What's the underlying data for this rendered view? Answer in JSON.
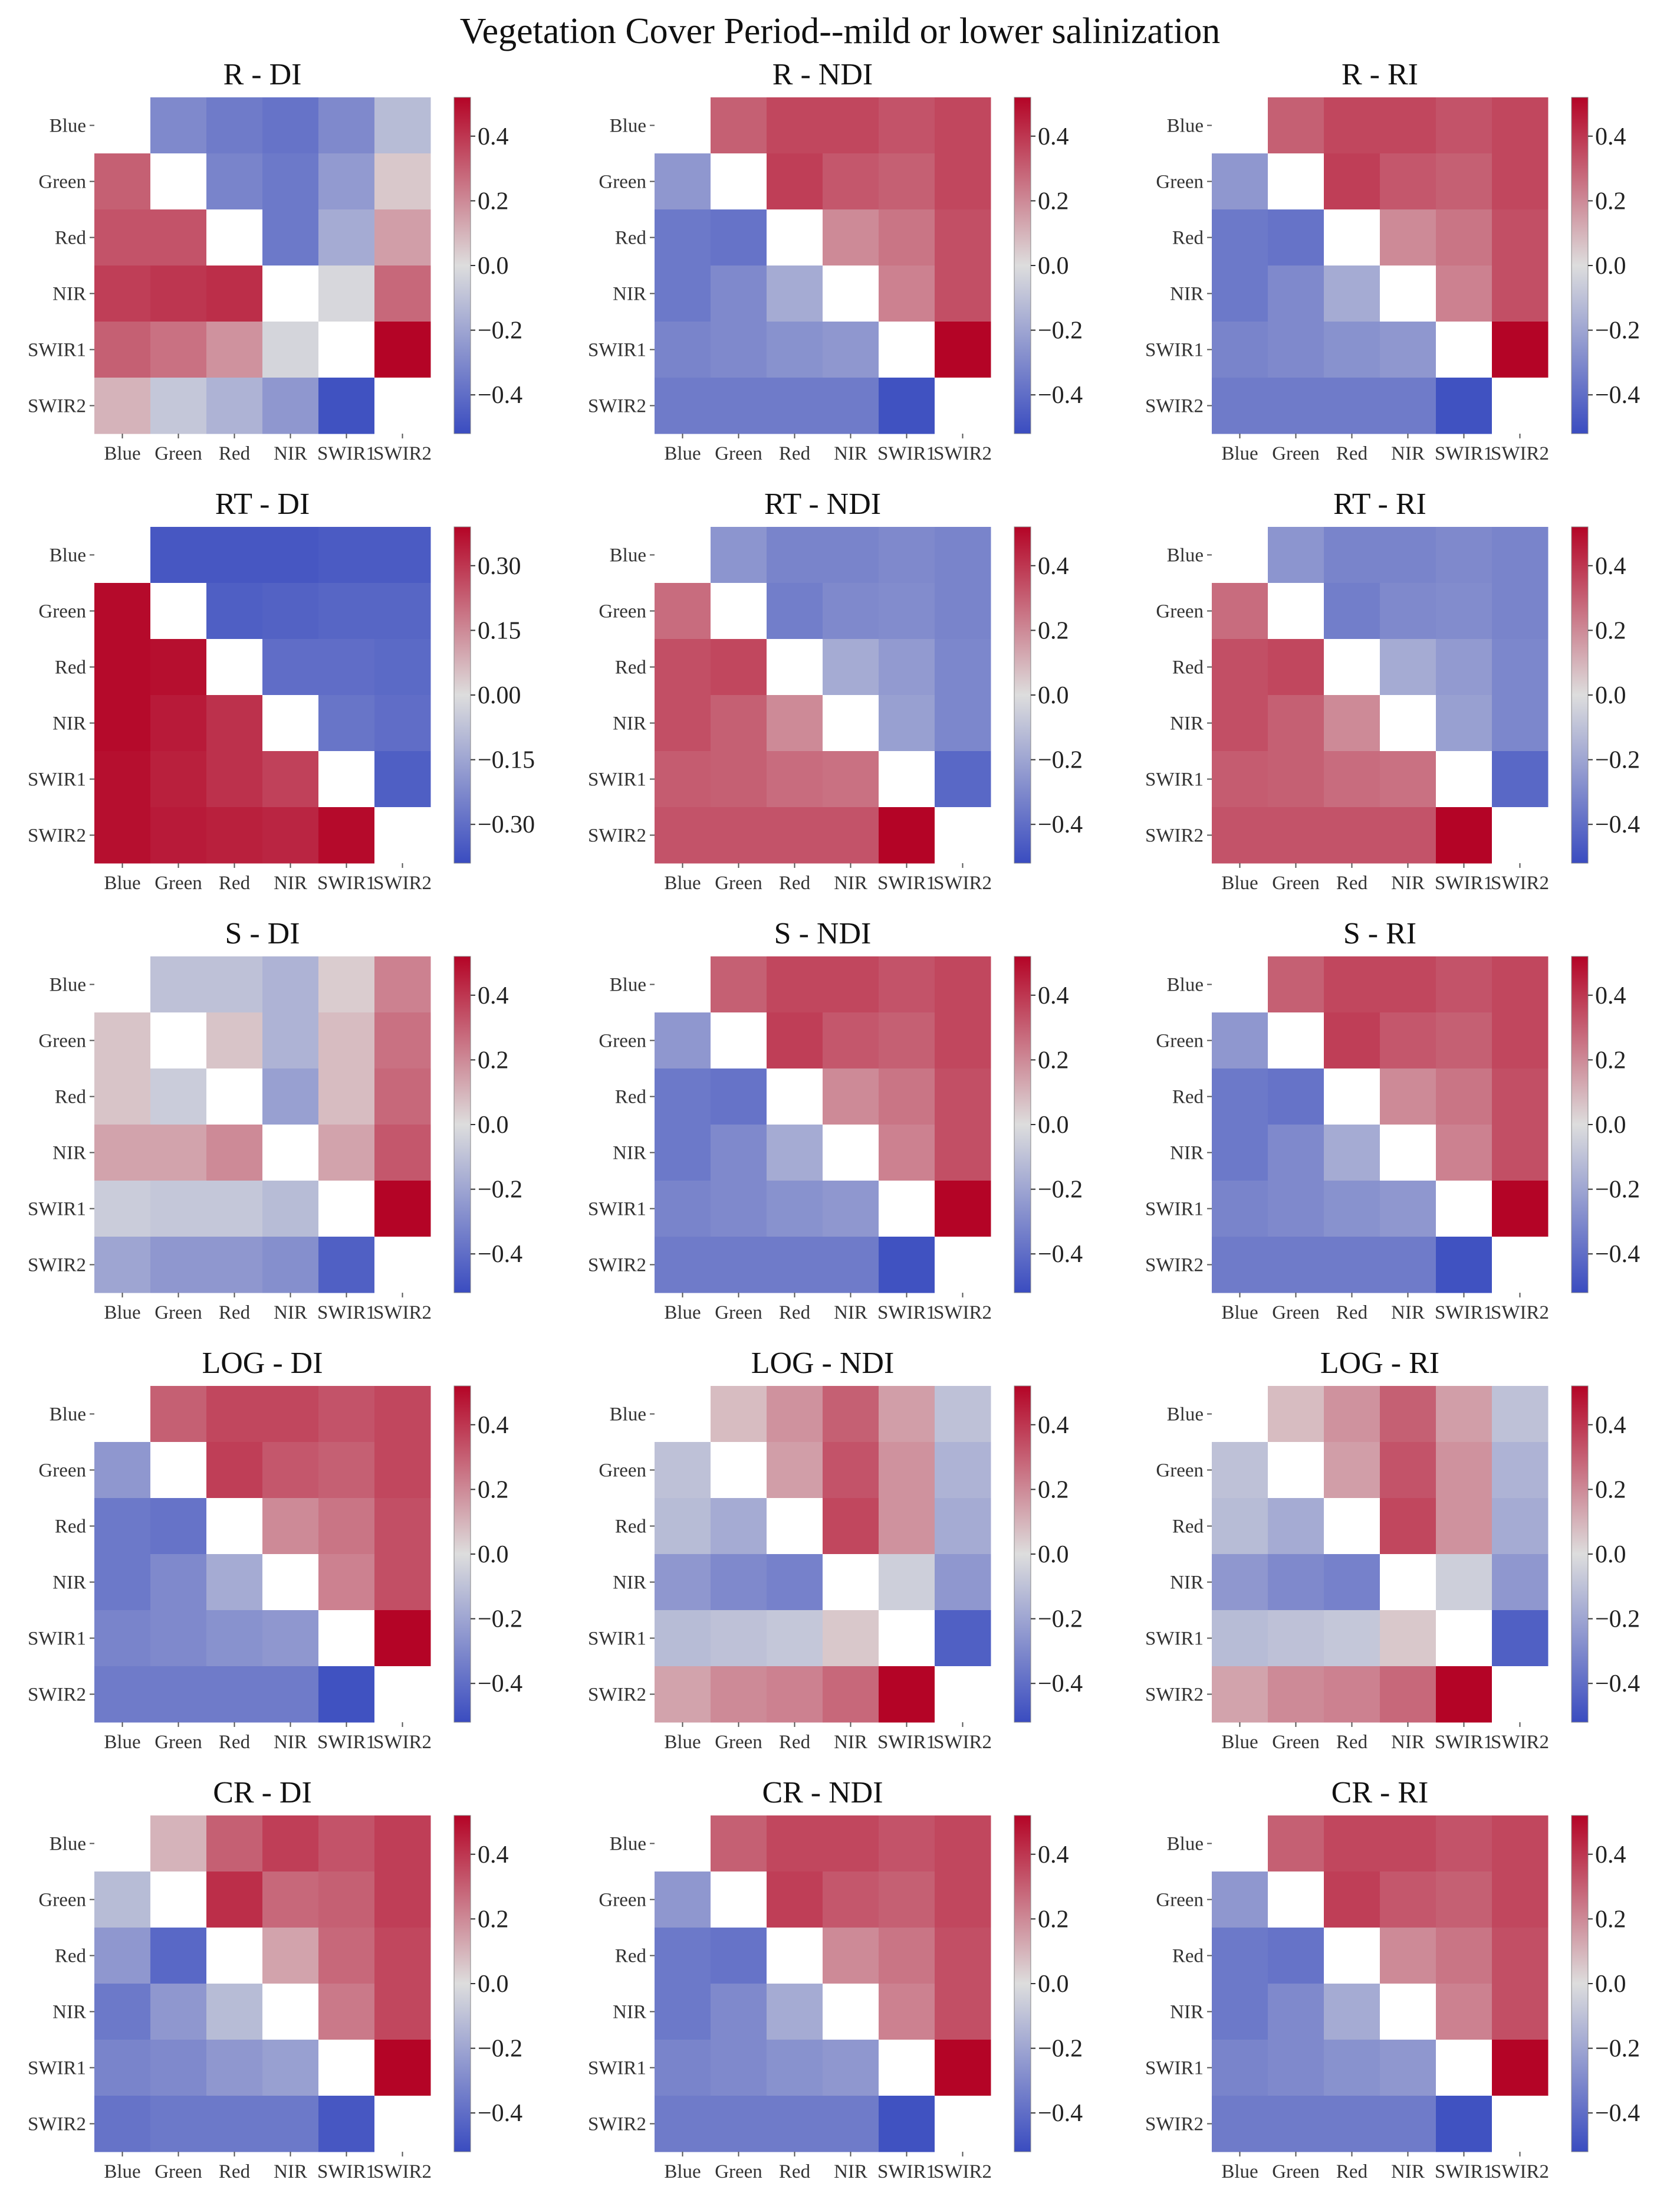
{
  "title": "Vegetation Cover Period--mild  or lower salinization",
  "colormap": {
    "name": "coolwarm",
    "low": "#3a4cc0",
    "mid": "#dddddd",
    "high": "#b40426"
  },
  "chart_data": [
    {
      "type": "heatmap",
      "title": "R - DI",
      "x_categories": [
        "Blue",
        "Green",
        "Red",
        "NIR",
        "SWIR1",
        "SWIR2"
      ],
      "y_categories": [
        "Blue",
        "Green",
        "Red",
        "NIR",
        "SWIR1",
        "SWIR2"
      ],
      "values": [
        [
          null,
          -0.3,
          -0.35,
          -0.38,
          -0.3,
          -0.12
        ],
        [
          0.3,
          null,
          -0.32,
          -0.36,
          -0.24,
          0.05
        ],
        [
          0.33,
          0.33,
          null,
          -0.36,
          -0.18,
          0.15
        ],
        [
          0.38,
          0.4,
          0.42,
          null,
          -0.02,
          0.28
        ],
        [
          0.3,
          0.26,
          0.18,
          -0.03,
          null,
          0.52
        ],
        [
          0.1,
          -0.08,
          -0.15,
          -0.25,
          -0.5,
          null
        ]
      ],
      "vlim": [
        -0.52,
        0.52
      ],
      "colorbar_ticks": [
        -0.4,
        -0.2,
        0.0,
        0.2,
        0.4
      ],
      "colorbar_labels": [
        "−0.4",
        "−0.2",
        "0.0",
        "0.2",
        "0.4"
      ]
    },
    {
      "type": "heatmap",
      "title": "R - NDI",
      "x_categories": [
        "Blue",
        "Green",
        "Red",
        "NIR",
        "SWIR1",
        "SWIR2"
      ],
      "y_categories": [
        "Blue",
        "Green",
        "Red",
        "NIR",
        "SWIR1",
        "SWIR2"
      ],
      "values": [
        [
          null,
          0.3,
          0.36,
          0.36,
          0.33,
          0.36
        ],
        [
          -0.25,
          null,
          0.38,
          0.32,
          0.3,
          0.36
        ],
        [
          -0.36,
          -0.38,
          null,
          0.2,
          0.25,
          0.34
        ],
        [
          -0.36,
          -0.3,
          -0.18,
          null,
          0.22,
          0.34
        ],
        [
          -0.32,
          -0.3,
          -0.27,
          -0.25,
          null,
          0.52
        ],
        [
          -0.35,
          -0.35,
          -0.35,
          -0.35,
          -0.5,
          null
        ]
      ],
      "vlim": [
        -0.52,
        0.52
      ],
      "colorbar_ticks": [
        -0.4,
        -0.2,
        0.0,
        0.2,
        0.4
      ],
      "colorbar_labels": [
        "−0.4",
        "−0.2",
        "0.0",
        "0.2",
        "0.4"
      ]
    },
    {
      "type": "heatmap",
      "title": "R - RI",
      "x_categories": [
        "Blue",
        "Green",
        "Red",
        "NIR",
        "SWIR1",
        "SWIR2"
      ],
      "y_categories": [
        "Blue",
        "Green",
        "Red",
        "NIR",
        "SWIR1",
        "SWIR2"
      ],
      "values": [
        [
          null,
          0.3,
          0.36,
          0.36,
          0.33,
          0.36
        ],
        [
          -0.25,
          null,
          0.38,
          0.32,
          0.3,
          0.36
        ],
        [
          -0.36,
          -0.38,
          null,
          0.2,
          0.25,
          0.34
        ],
        [
          -0.36,
          -0.3,
          -0.18,
          null,
          0.22,
          0.34
        ],
        [
          -0.32,
          -0.3,
          -0.27,
          -0.25,
          null,
          0.52
        ],
        [
          -0.35,
          -0.35,
          -0.35,
          -0.35,
          -0.5,
          null
        ]
      ],
      "vlim": [
        -0.52,
        0.52
      ],
      "colorbar_ticks": [
        -0.4,
        -0.2,
        0.0,
        0.2,
        0.4
      ],
      "colorbar_labels": [
        "−0.4",
        "−0.2",
        "0.0",
        "0.2",
        "0.4"
      ]
    },
    {
      "type": "heatmap",
      "title": "RT - DI",
      "x_categories": [
        "Blue",
        "Green",
        "Red",
        "NIR",
        "SWIR1",
        "SWIR2"
      ],
      "y_categories": [
        "Blue",
        "Green",
        "Red",
        "NIR",
        "SWIR1",
        "SWIR2"
      ],
      "values": [
        [
          null,
          -0.36,
          -0.36,
          -0.36,
          -0.35,
          -0.35
        ],
        [
          0.38,
          null,
          -0.34,
          -0.33,
          -0.32,
          -0.32
        ],
        [
          0.38,
          0.37,
          null,
          -0.3,
          -0.3,
          -0.31
        ],
        [
          0.38,
          0.35,
          0.31,
          null,
          -0.28,
          -0.3
        ],
        [
          0.37,
          0.34,
          0.31,
          0.28,
          null,
          -0.34
        ],
        [
          0.37,
          0.35,
          0.34,
          0.33,
          0.38,
          null
        ]
      ],
      "vlim": [
        -0.39,
        0.39
      ],
      "colorbar_ticks": [
        -0.3,
        -0.15,
        0.0,
        0.15,
        0.3
      ],
      "colorbar_labels": [
        "−0.30",
        "−0.15",
        "0.00",
        "0.15",
        "0.30"
      ]
    },
    {
      "type": "heatmap",
      "title": "RT - NDI",
      "x_categories": [
        "Blue",
        "Green",
        "Red",
        "NIR",
        "SWIR1",
        "SWIR2"
      ],
      "y_categories": [
        "Blue",
        "Green",
        "Red",
        "NIR",
        "SWIR1",
        "SWIR2"
      ],
      "values": [
        [
          null,
          -0.26,
          -0.32,
          -0.32,
          -0.3,
          -0.32
        ],
        [
          0.27,
          null,
          -0.34,
          -0.3,
          -0.29,
          -0.32
        ],
        [
          0.34,
          0.36,
          null,
          -0.18,
          -0.24,
          -0.31
        ],
        [
          0.34,
          0.3,
          0.2,
          null,
          -0.22,
          -0.31
        ],
        [
          0.31,
          0.3,
          0.27,
          0.26,
          null,
          -0.42
        ],
        [
          0.33,
          0.33,
          0.33,
          0.33,
          0.52,
          null
        ]
      ],
      "vlim": [
        -0.52,
        0.52
      ],
      "colorbar_ticks": [
        -0.4,
        -0.2,
        0.0,
        0.2,
        0.4
      ],
      "colorbar_labels": [
        "−0.4",
        "−0.2",
        "0.0",
        "0.2",
        "0.4"
      ]
    },
    {
      "type": "heatmap",
      "title": "RT - RI",
      "x_categories": [
        "Blue",
        "Green",
        "Red",
        "NIR",
        "SWIR1",
        "SWIR2"
      ],
      "y_categories": [
        "Blue",
        "Green",
        "Red",
        "NIR",
        "SWIR1",
        "SWIR2"
      ],
      "values": [
        [
          null,
          -0.26,
          -0.32,
          -0.32,
          -0.3,
          -0.32
        ],
        [
          0.27,
          null,
          -0.34,
          -0.3,
          -0.29,
          -0.32
        ],
        [
          0.34,
          0.36,
          null,
          -0.18,
          -0.24,
          -0.31
        ],
        [
          0.34,
          0.3,
          0.2,
          null,
          -0.22,
          -0.31
        ],
        [
          0.31,
          0.3,
          0.27,
          0.26,
          null,
          -0.42
        ],
        [
          0.33,
          0.33,
          0.33,
          0.33,
          0.52,
          null
        ]
      ],
      "vlim": [
        -0.52,
        0.52
      ],
      "colorbar_ticks": [
        -0.4,
        -0.2,
        0.0,
        0.2,
        0.4
      ],
      "colorbar_labels": [
        "−0.4",
        "−0.2",
        "0.0",
        "0.2",
        "0.4"
      ]
    },
    {
      "type": "heatmap",
      "title": "S - DI",
      "x_categories": [
        "Blue",
        "Green",
        "Red",
        "NIR",
        "SWIR1",
        "SWIR2"
      ],
      "y_categories": [
        "Blue",
        "Green",
        "Red",
        "NIR",
        "SWIR1",
        "SWIR2"
      ],
      "values": [
        [
          null,
          -0.1,
          -0.1,
          -0.15,
          0.04,
          0.22
        ],
        [
          0.06,
          null,
          0.06,
          -0.15,
          0.08,
          0.26
        ],
        [
          0.06,
          -0.06,
          null,
          -0.22,
          0.08,
          0.28
        ],
        [
          0.14,
          0.14,
          0.2,
          null,
          0.14,
          0.32
        ],
        [
          -0.06,
          -0.08,
          -0.08,
          -0.12,
          null,
          0.52
        ],
        [
          -0.2,
          -0.25,
          -0.25,
          -0.28,
          -0.45,
          null
        ]
      ],
      "vlim": [
        -0.52,
        0.52
      ],
      "colorbar_ticks": [
        -0.4,
        -0.2,
        0.0,
        0.2,
        0.4
      ],
      "colorbar_labels": [
        "−0.4",
        "−0.2",
        "0.0",
        "0.2",
        "0.4"
      ]
    },
    {
      "type": "heatmap",
      "title": "S - NDI",
      "x_categories": [
        "Blue",
        "Green",
        "Red",
        "NIR",
        "SWIR1",
        "SWIR2"
      ],
      "y_categories": [
        "Blue",
        "Green",
        "Red",
        "NIR",
        "SWIR1",
        "SWIR2"
      ],
      "values": [
        [
          null,
          0.3,
          0.36,
          0.36,
          0.33,
          0.36
        ],
        [
          -0.25,
          null,
          0.38,
          0.32,
          0.3,
          0.36
        ],
        [
          -0.36,
          -0.38,
          null,
          0.2,
          0.25,
          0.34
        ],
        [
          -0.36,
          -0.3,
          -0.18,
          null,
          0.22,
          0.34
        ],
        [
          -0.32,
          -0.3,
          -0.27,
          -0.25,
          null,
          0.52
        ],
        [
          -0.35,
          -0.35,
          -0.35,
          -0.35,
          -0.5,
          null
        ]
      ],
      "vlim": [
        -0.52,
        0.52
      ],
      "colorbar_ticks": [
        -0.4,
        -0.2,
        0.0,
        0.2,
        0.4
      ],
      "colorbar_labels": [
        "−0.4",
        "−0.2",
        "0.0",
        "0.2",
        "0.4"
      ]
    },
    {
      "type": "heatmap",
      "title": "S - RI",
      "x_categories": [
        "Blue",
        "Green",
        "Red",
        "NIR",
        "SWIR1",
        "SWIR2"
      ],
      "y_categories": [
        "Blue",
        "Green",
        "Red",
        "NIR",
        "SWIR1",
        "SWIR2"
      ],
      "values": [
        [
          null,
          0.3,
          0.36,
          0.36,
          0.33,
          0.36
        ],
        [
          -0.25,
          null,
          0.38,
          0.32,
          0.3,
          0.36
        ],
        [
          -0.36,
          -0.38,
          null,
          0.2,
          0.25,
          0.34
        ],
        [
          -0.36,
          -0.3,
          -0.18,
          null,
          0.22,
          0.34
        ],
        [
          -0.32,
          -0.3,
          -0.27,
          -0.25,
          null,
          0.52
        ],
        [
          -0.35,
          -0.35,
          -0.35,
          -0.35,
          -0.5,
          null
        ]
      ],
      "vlim": [
        -0.52,
        0.52
      ],
      "colorbar_ticks": [
        -0.4,
        -0.2,
        0.0,
        0.2,
        0.4
      ],
      "colorbar_labels": [
        "−0.4",
        "−0.2",
        "0.0",
        "0.2",
        "0.4"
      ]
    },
    {
      "type": "heatmap",
      "title": "LOG - DI",
      "x_categories": [
        "Blue",
        "Green",
        "Red",
        "NIR",
        "SWIR1",
        "SWIR2"
      ],
      "y_categories": [
        "Blue",
        "Green",
        "Red",
        "NIR",
        "SWIR1",
        "SWIR2"
      ],
      "values": [
        [
          null,
          0.3,
          0.36,
          0.36,
          0.33,
          0.36
        ],
        [
          -0.25,
          null,
          0.38,
          0.32,
          0.3,
          0.36
        ],
        [
          -0.36,
          -0.38,
          null,
          0.2,
          0.25,
          0.34
        ],
        [
          -0.36,
          -0.3,
          -0.18,
          null,
          0.22,
          0.34
        ],
        [
          -0.32,
          -0.3,
          -0.27,
          -0.25,
          null,
          0.52
        ],
        [
          -0.35,
          -0.35,
          -0.35,
          -0.35,
          -0.5,
          null
        ]
      ],
      "vlim": [
        -0.52,
        0.52
      ],
      "colorbar_ticks": [
        -0.4,
        -0.2,
        0.0,
        0.2,
        0.4
      ],
      "colorbar_labels": [
        "−0.4",
        "−0.2",
        "0.0",
        "0.2",
        "0.4"
      ]
    },
    {
      "type": "heatmap",
      "title": "LOG - NDI",
      "x_categories": [
        "Blue",
        "Green",
        "Red",
        "NIR",
        "SWIR1",
        "SWIR2"
      ],
      "y_categories": [
        "Blue",
        "Green",
        "Red",
        "NIR",
        "SWIR1",
        "SWIR2"
      ],
      "values": [
        [
          null,
          0.08,
          0.18,
          0.3,
          0.15,
          -0.1
        ],
        [
          -0.1,
          null,
          0.15,
          0.33,
          0.18,
          -0.15
        ],
        [
          -0.12,
          -0.18,
          null,
          0.36,
          0.18,
          -0.18
        ],
        [
          -0.25,
          -0.3,
          -0.33,
          null,
          -0.05,
          -0.25
        ],
        [
          -0.12,
          -0.1,
          -0.08,
          0.05,
          null,
          -0.45
        ],
        [
          0.14,
          0.2,
          0.22,
          0.28,
          0.52,
          null
        ]
      ],
      "vlim": [
        -0.52,
        0.52
      ],
      "colorbar_ticks": [
        -0.4,
        -0.2,
        0.0,
        0.2,
        0.4
      ],
      "colorbar_labels": [
        "−0.4",
        "−0.2",
        "0.0",
        "0.2",
        "0.4"
      ]
    },
    {
      "type": "heatmap",
      "title": "LOG - RI",
      "x_categories": [
        "Blue",
        "Green",
        "Red",
        "NIR",
        "SWIR1",
        "SWIR2"
      ],
      "y_categories": [
        "Blue",
        "Green",
        "Red",
        "NIR",
        "SWIR1",
        "SWIR2"
      ],
      "values": [
        [
          null,
          0.08,
          0.18,
          0.3,
          0.15,
          -0.1
        ],
        [
          -0.1,
          null,
          0.15,
          0.33,
          0.18,
          -0.15
        ],
        [
          -0.12,
          -0.18,
          null,
          0.36,
          0.18,
          -0.18
        ],
        [
          -0.25,
          -0.3,
          -0.33,
          null,
          -0.05,
          -0.25
        ],
        [
          -0.12,
          -0.1,
          -0.08,
          0.05,
          null,
          -0.45
        ],
        [
          0.14,
          0.2,
          0.22,
          0.28,
          0.52,
          null
        ]
      ],
      "vlim": [
        -0.52,
        0.52
      ],
      "colorbar_ticks": [
        -0.4,
        -0.2,
        0.0,
        0.2,
        0.4
      ],
      "colorbar_labels": [
        "−0.4",
        "−0.2",
        "0.0",
        "0.2",
        "0.4"
      ]
    },
    {
      "type": "heatmap",
      "title": "CR - DI",
      "x_categories": [
        "Blue",
        "Green",
        "Red",
        "NIR",
        "SWIR1",
        "SWIR2"
      ],
      "y_categories": [
        "Blue",
        "Green",
        "Red",
        "NIR",
        "SWIR1",
        "SWIR2"
      ],
      "values": [
        [
          null,
          0.1,
          0.3,
          0.38,
          0.33,
          0.38
        ],
        [
          -0.12,
          null,
          0.42,
          0.28,
          0.3,
          0.38
        ],
        [
          -0.25,
          -0.42,
          null,
          0.14,
          0.28,
          0.36
        ],
        [
          -0.36,
          -0.25,
          -0.12,
          null,
          0.24,
          0.36
        ],
        [
          -0.32,
          -0.3,
          -0.25,
          -0.22,
          null,
          0.52
        ],
        [
          -0.38,
          -0.36,
          -0.36,
          -0.36,
          -0.48,
          null
        ]
      ],
      "vlim": [
        -0.52,
        0.52
      ],
      "colorbar_ticks": [
        -0.4,
        -0.2,
        0.0,
        0.2,
        0.4
      ],
      "colorbar_labels": [
        "−0.4",
        "−0.2",
        "0.0",
        "0.2",
        "0.4"
      ]
    },
    {
      "type": "heatmap",
      "title": "CR - NDI",
      "x_categories": [
        "Blue",
        "Green",
        "Red",
        "NIR",
        "SWIR1",
        "SWIR2"
      ],
      "y_categories": [
        "Blue",
        "Green",
        "Red",
        "NIR",
        "SWIR1",
        "SWIR2"
      ],
      "values": [
        [
          null,
          0.3,
          0.36,
          0.36,
          0.33,
          0.36
        ],
        [
          -0.25,
          null,
          0.38,
          0.32,
          0.3,
          0.36
        ],
        [
          -0.36,
          -0.38,
          null,
          0.2,
          0.25,
          0.34
        ],
        [
          -0.36,
          -0.3,
          -0.18,
          null,
          0.22,
          0.34
        ],
        [
          -0.32,
          -0.3,
          -0.27,
          -0.25,
          null,
          0.52
        ],
        [
          -0.35,
          -0.35,
          -0.35,
          -0.35,
          -0.5,
          null
        ]
      ],
      "vlim": [
        -0.52,
        0.52
      ],
      "colorbar_ticks": [
        -0.4,
        -0.2,
        0.0,
        0.2,
        0.4
      ],
      "colorbar_labels": [
        "−0.4",
        "−0.2",
        "0.0",
        "0.2",
        "0.4"
      ]
    },
    {
      "type": "heatmap",
      "title": "CR - RI",
      "x_categories": [
        "Blue",
        "Green",
        "Red",
        "NIR",
        "SWIR1",
        "SWIR2"
      ],
      "y_categories": [
        "Blue",
        "Green",
        "Red",
        "NIR",
        "SWIR1",
        "SWIR2"
      ],
      "values": [
        [
          null,
          0.3,
          0.36,
          0.36,
          0.33,
          0.36
        ],
        [
          -0.25,
          null,
          0.38,
          0.32,
          0.3,
          0.36
        ],
        [
          -0.36,
          -0.38,
          null,
          0.2,
          0.25,
          0.34
        ],
        [
          -0.36,
          -0.3,
          -0.18,
          null,
          0.22,
          0.34
        ],
        [
          -0.32,
          -0.3,
          -0.27,
          -0.25,
          null,
          0.52
        ],
        [
          -0.35,
          -0.35,
          -0.35,
          -0.35,
          -0.5,
          null
        ]
      ],
      "vlim": [
        -0.52,
        0.52
      ],
      "colorbar_ticks": [
        -0.4,
        -0.2,
        0.0,
        0.2,
        0.4
      ],
      "colorbar_labels": [
        "−0.4",
        "−0.2",
        "0.0",
        "0.2",
        "0.4"
      ]
    }
  ]
}
